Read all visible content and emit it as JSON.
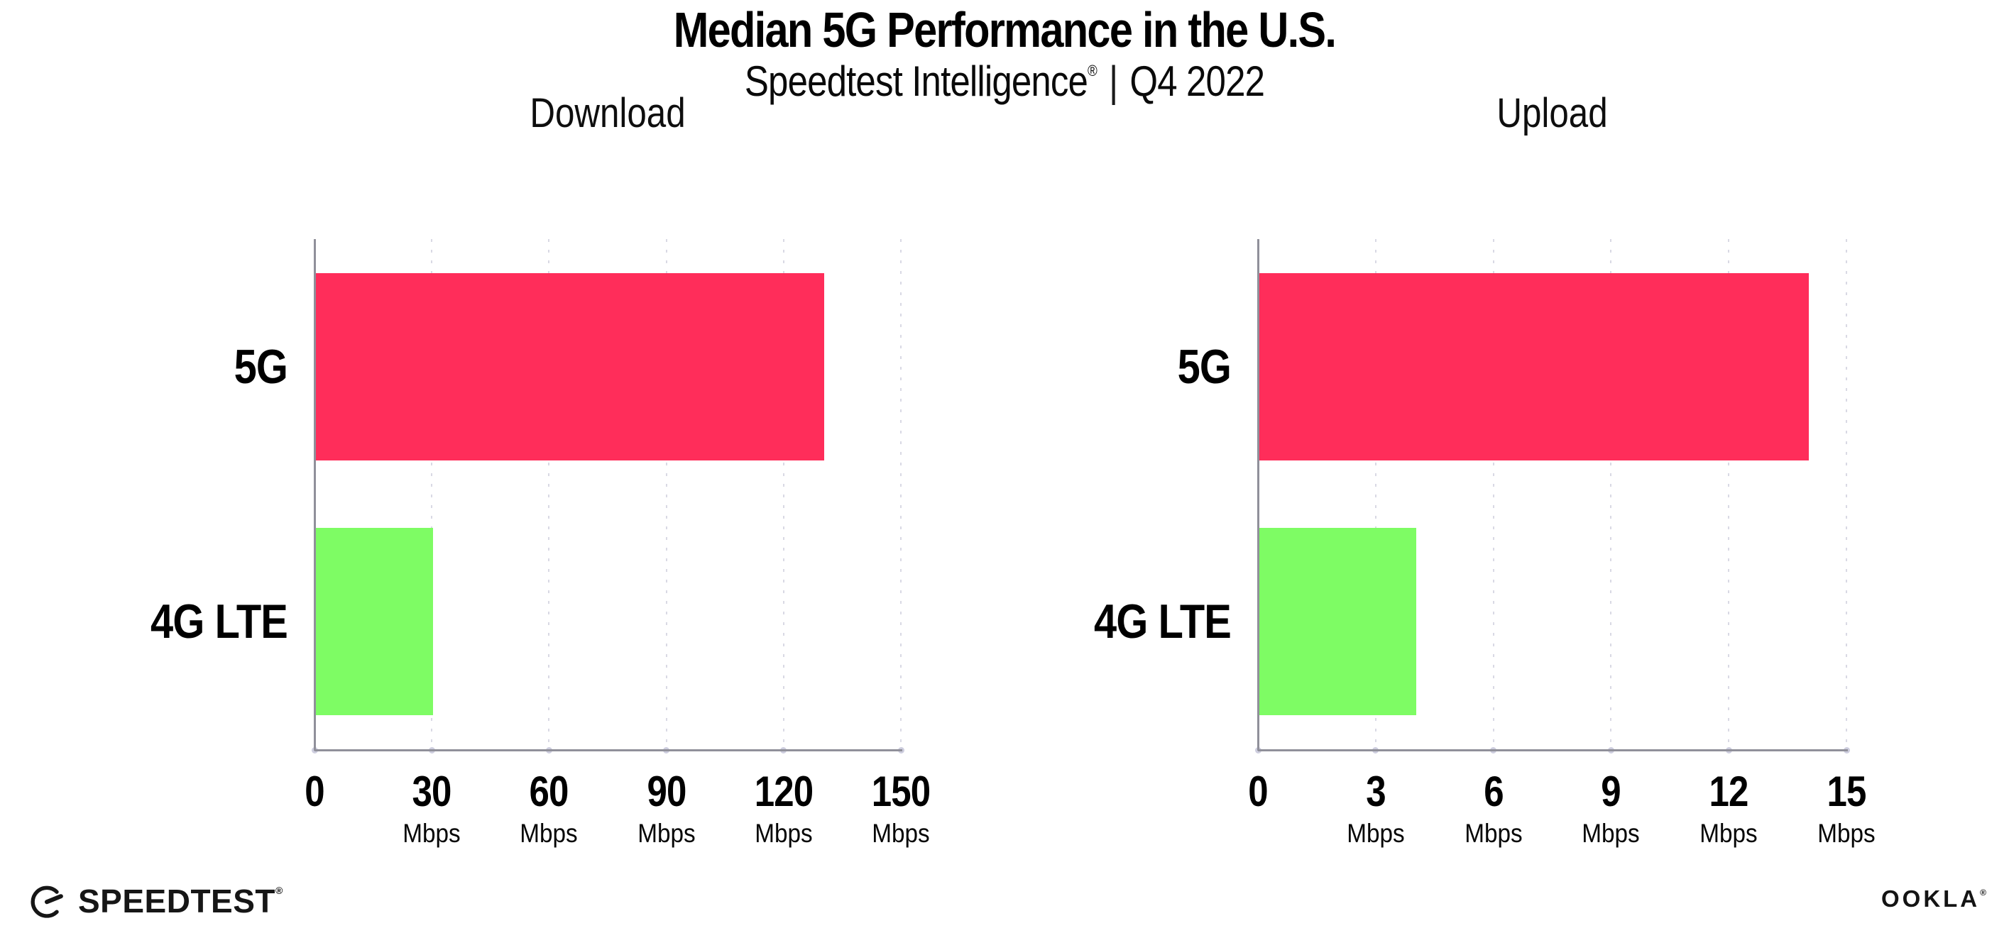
{
  "page": {
    "title": "Median 5G Performance in the U.S.",
    "subtitle": {
      "brand": "Speedtest Intelligence",
      "registered": "®",
      "divider": "|",
      "period": "Q4 2022"
    }
  },
  "chart_data": [
    {
      "type": "bar",
      "orientation": "horizontal",
      "title": "Download",
      "categories": [
        "5G",
        "4G LTE"
      ],
      "values": [
        130,
        30
      ],
      "unit": "Mbps",
      "xlabel": "",
      "ylabel": "",
      "xlim": [
        0,
        150
      ],
      "xticks": [
        0,
        30,
        60,
        90,
        120,
        150
      ],
      "grid": "vertical-dotted",
      "legend": "none"
    },
    {
      "type": "bar",
      "orientation": "horizontal",
      "title": "Upload",
      "categories": [
        "5G",
        "4G LTE"
      ],
      "values": [
        14,
        4
      ],
      "unit": "Mbps",
      "xlabel": "",
      "ylabel": "",
      "xlim": [
        0,
        15
      ],
      "xticks": [
        0,
        3,
        6,
        9,
        12,
        15
      ],
      "grid": "vertical-dotted",
      "legend": "none"
    }
  ],
  "colors": {
    "5G": "#FF2D5A",
    "4G LTE": "#7EFC64",
    "axis": "#90909a",
    "gridline": "#d9d9e4",
    "text": "#000000"
  },
  "footer": {
    "speedtest_label": "SPEEDTEST",
    "speedtest_mark": "®",
    "speedtest_icon": "gauge-icon",
    "ookla_label": "OOKLA",
    "ookla_mark": "®"
  }
}
